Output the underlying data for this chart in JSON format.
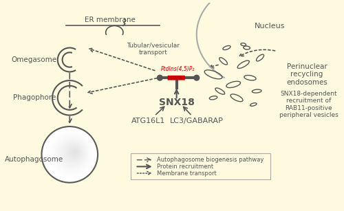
{
  "bg_color_top": "#FEFAE0",
  "bg_color_bottom": "#F5D98A",
  "title": "",
  "text_color": "#333333",
  "dark_gray": "#555555",
  "light_gray": "#AAAAAA",
  "red_color": "#CC0000",
  "labels": {
    "er_membrane": "ER membrane",
    "omegasome": "Omegasome",
    "phagophore": "Phagophore",
    "autophagosome": "Autophagosome",
    "nucleus": "Nucleus",
    "perinuclear": "Perinuclear\nrecycling\nendosomes",
    "snx18_dependent": "SNX18-dependent\nrecruitment of\nRAB11-positive\nperipheral vesicles",
    "tubular": "Tubular/vesicular\ntransport",
    "ptdins": "PtdIns(4,5)P₂",
    "snx18": "SNX18",
    "atg16l1": "ATG16L1",
    "lc3gabarap": "LC3/GABARAP",
    "legend1": "Autophagosome biogenesis pathway",
    "legend2": "Protein recruitment",
    "legend3": "Membrane transport"
  }
}
